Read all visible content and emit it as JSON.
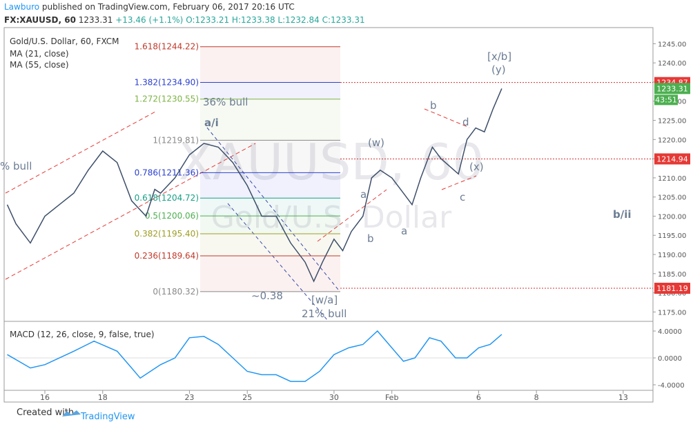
{
  "header": {
    "author": "Lawburo",
    "published": "published on TradingView.com, February 06, 2017 20:16 UTC",
    "symbol": "FX:XAUUSD, 60",
    "last": "1233.31",
    "change": "+13.46 (+1.1%)",
    "ohlc": "O:1233.21 H:1233.38 L:1232.84 C:1233.31"
  },
  "chart_data": [
    {
      "type": "line",
      "title": "Gold/U.S. Dollar, 60, FXCM",
      "indicators": [
        "MA (21, close)",
        "MA (55, close)"
      ],
      "watermark": [
        "XAUUSD, 60",
        "Gold/U.S. Dollar"
      ],
      "color": "#3d4f6a",
      "x": [
        -1.3,
        -1.0,
        -0.5,
        0,
        0.5,
        1.0,
        1.5,
        2.0,
        2.5,
        3.0,
        3.5,
        3.8,
        4.0,
        4.5,
        5.0,
        5.5,
        6.0,
        6.5,
        7.0,
        7.5,
        8.0,
        8.5,
        9.0,
        9.3,
        9.6,
        10.0,
        10.3,
        10.6,
        11.0,
        11.3,
        11.6,
        12.0,
        12.4,
        12.7,
        13.0,
        13.4,
        13.7,
        14.0,
        14.3,
        14.6,
        14.9,
        15.2,
        15.5,
        15.8
      ],
      "values": [
        1203,
        1198,
        1193,
        1200,
        1203,
        1206,
        1212,
        1217,
        1214,
        1204,
        1200,
        1207,
        1206,
        1210,
        1216,
        1219,
        1218,
        1214,
        1208,
        1200,
        1200,
        1193,
        1188,
        1183,
        1188,
        1194,
        1191,
        1196,
        1200,
        1210,
        1212,
        1210,
        1206,
        1203,
        1210,
        1218,
        1215,
        1213,
        1211,
        1220,
        1223,
        1222,
        1228,
        1233.31
      ],
      "xlim": [
        -1.36,
        21.03
      ],
      "xticks": [
        {
          "value": 0,
          "label": "16"
        },
        {
          "value": 2,
          "label": "18"
        },
        {
          "value": 5,
          "label": "23"
        },
        {
          "value": 7,
          "label": "25"
        },
        {
          "value": 10,
          "label": "30"
        },
        {
          "value": 12,
          "label": "Feb"
        },
        {
          "value": 15,
          "label": "6"
        },
        {
          "value": 17,
          "label": "8"
        },
        {
          "value": 20,
          "label": "13"
        }
      ],
      "ylim": [
        1172.55,
        1248.85
      ],
      "yticks": [
        {
          "value": 1175,
          "label": "1175.00"
        },
        {
          "value": 1180,
          "label": "1180.00"
        },
        {
          "value": 1185,
          "label": "1185.00"
        },
        {
          "value": 1190,
          "label": "1190.00"
        },
        {
          "value": 1195,
          "label": "1195.00"
        },
        {
          "value": 1200,
          "label": "1200.00"
        },
        {
          "value": 1205,
          "label": "1205.00"
        },
        {
          "value": 1210,
          "label": "1210.00"
        },
        {
          "value": 1215,
          "label": "1215.00"
        },
        {
          "value": 1220,
          "label": "1220.00"
        },
        {
          "value": 1225,
          "label": "1225.00"
        },
        {
          "value": 1230,
          "label": "1230.00"
        },
        {
          "value": 1235,
          "label": "1235.00"
        },
        {
          "value": 1240,
          "label": "1240.00"
        },
        {
          "value": 1245,
          "label": "1245.00"
        }
      ],
      "fib_levels": [
        {
          "value": 1244.22,
          "label": "1.618(1244.22)",
          "color": "#c0392b"
        },
        {
          "value": 1234.9,
          "label": "1.382(1234.90)",
          "color": "#2a3fd0"
        },
        {
          "value": 1230.55,
          "label": "1.272(1230.55)",
          "color": "#7cb342"
        },
        {
          "value": 1219.81,
          "label": "1(1219.81)",
          "color": "#888888"
        },
        {
          "value": 1211.36,
          "label": "0.786(1211.36)",
          "color": "#2a3fd0"
        },
        {
          "value": 1204.72,
          "label": "0.618(1204.72)",
          "color": "#16a085"
        },
        {
          "value": 1200.06,
          "label": "0.5(1200.06)",
          "color": "#4caf50"
        },
        {
          "value": 1195.4,
          "label": "0.382(1195.40)",
          "color": "#9e9d24"
        },
        {
          "value": 1189.64,
          "label": "0.236(1189.64)",
          "color": "#c0392b"
        },
        {
          "value": 1180.32,
          "label": "0(1180.32)",
          "color": "#888888"
        }
      ],
      "price_lines": [
        {
          "value": 1234.87,
          "label": "1234.87"
        },
        {
          "value": 1214.94,
          "label": "1214.94"
        },
        {
          "value": 1181.19,
          "label": "1181.19"
        }
      ],
      "last_price": {
        "value": 1233.31,
        "label": "1233.31",
        "countdown": "43:51"
      },
      "annotations": [
        "% bull",
        "36% bull",
        "a/i",
        "(w)",
        "[x/b]",
        "(y)",
        "b",
        "d",
        "(x)",
        "c",
        "a",
        "b",
        "a",
        "b/ii",
        "~0.38",
        "[w/a]",
        "21% bull"
      ]
    },
    {
      "type": "line",
      "title": "MACD (12, 26, close, 9, false, true)",
      "color": "#2196f3",
      "x": [
        -1.3,
        -0.5,
        0,
        1,
        1.7,
        2.5,
        3,
        3.3,
        4,
        4.5,
        5,
        5.5,
        6,
        6.5,
        7,
        7.5,
        8,
        8.5,
        9,
        9.5,
        10,
        10.5,
        11,
        11.5,
        12,
        12.4,
        12.8,
        13.3,
        13.7,
        14.2,
        14.6,
        15,
        15.4,
        15.8
      ],
      "values": [
        0.5,
        -1.5,
        -1.0,
        1.0,
        2.5,
        1.0,
        -1.5,
        -3,
        -1,
        0,
        3,
        3.2,
        2,
        0,
        -2,
        -2.5,
        -2.5,
        -3.5,
        -3.5,
        -2,
        0.5,
        1.5,
        2.0,
        4.0,
        1.5,
        -0.5,
        0,
        3.0,
        2.5,
        0,
        0,
        1.5,
        2.0,
        3.5
      ],
      "ylim": [
        -4.82,
        5.03
      ],
      "yticks": [
        {
          "value": 4,
          "label": "4.0000"
        },
        {
          "value": 0,
          "label": "0.0000"
        },
        {
          "value": -4,
          "label": "-4.0000"
        }
      ]
    }
  ],
  "footer": {
    "created": "Created with",
    "brand": "TradingView"
  }
}
